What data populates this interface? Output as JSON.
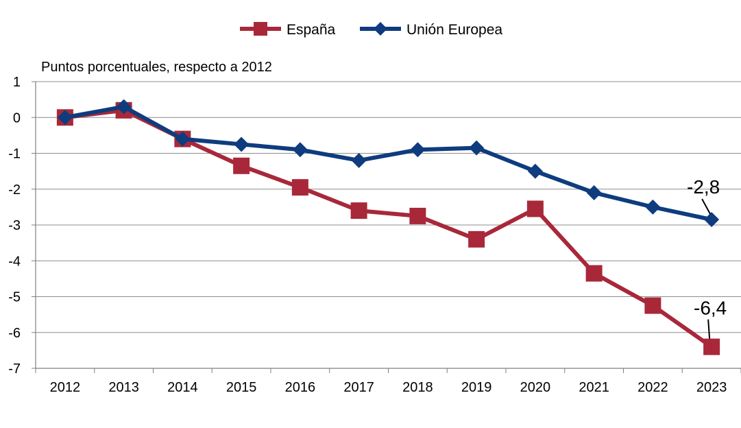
{
  "chart_data": {
    "type": "line",
    "title": "",
    "xlabel": "",
    "ylabel": "Puntos porcentuales, respecto a 2012",
    "x": [
      "2012",
      "2013",
      "2014",
      "2015",
      "2016",
      "2017",
      "2018",
      "2019",
      "2020",
      "2021",
      "2022",
      "2023"
    ],
    "ylim": [
      -7,
      1
    ],
    "yticks": [
      "1",
      "0",
      "-1",
      "-2",
      "-3",
      "-4",
      "-5",
      "-6",
      "-7"
    ],
    "grid": true,
    "legend_position": "top-center",
    "series": [
      {
        "name": "España",
        "color": "#A8283A",
        "marker": "square",
        "values": [
          0,
          0.2,
          -0.6,
          -1.35,
          -1.95,
          -2.6,
          -2.75,
          -3.4,
          -2.55,
          -4.35,
          -5.25,
          -6.4
        ]
      },
      {
        "name": "Unión Europea",
        "color": "#0E3C7E",
        "marker": "diamond",
        "values": [
          0,
          0.3,
          -0.6,
          -0.75,
          -0.9,
          -1.2,
          -0.9,
          -0.85,
          -1.5,
          -2.1,
          -2.5,
          -2.85
        ]
      }
    ],
    "annotations": [
      {
        "text": "-2,8",
        "series": 1,
        "x": "2023"
      },
      {
        "text": "-6,4",
        "series": 0,
        "x": "2023"
      }
    ]
  }
}
